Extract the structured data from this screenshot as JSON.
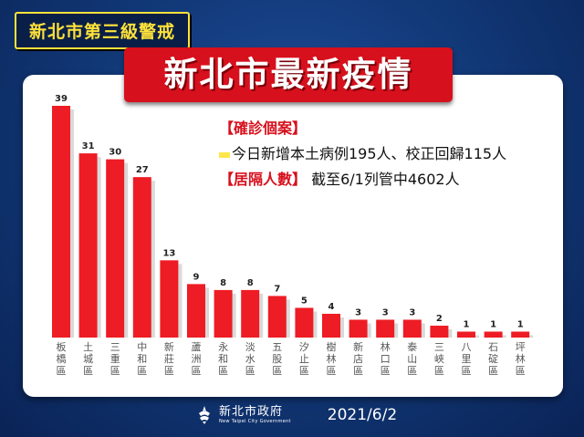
{
  "header": {
    "tag": "新北市第三級警戒",
    "title": "新北市最新疫情"
  },
  "info": {
    "confirmed_label": "【確診個案】",
    "confirmed_text": "今日新增本土病例195人、校正回歸115人",
    "quarantine_label": "【居隔人數】",
    "quarantine_text": " 截至6/1列管中4602人"
  },
  "footer": {
    "logo_icon": "new-taipei-city-logo-icon",
    "logo_cn": "新北市政府",
    "logo_en": "New Taipei City Government",
    "date": "2021/6/2"
  },
  "colors": {
    "bar": "#ee1c24",
    "title_bg": "#d7101d",
    "tag_text": "#ffe23a",
    "background": "#123a7a"
  },
  "chart_data": {
    "type": "bar",
    "categories": [
      "板橋區",
      "土城區",
      "三重區",
      "中和區",
      "新莊區",
      "蘆洲區",
      "永和區",
      "淡水區",
      "五股區",
      "汐止區",
      "樹林區",
      "新店區",
      "林口區",
      "泰山區",
      "三峽區",
      "八里區",
      "石碇區",
      "坪林區"
    ],
    "values": [
      39,
      31,
      30,
      27,
      13,
      9,
      8,
      8,
      7,
      5,
      4,
      3,
      3,
      3,
      2,
      1,
      1,
      1
    ],
    "ylim": [
      0,
      39
    ],
    "grid": false,
    "legend": "none"
  }
}
